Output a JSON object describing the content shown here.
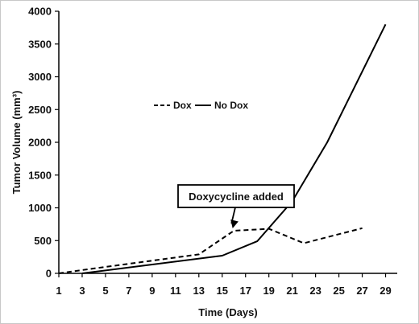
{
  "chart_data": {
    "type": "line",
    "xlabel": "Time (Days)",
    "ylabel": "Tumor Volume (mm³)",
    "xlim": [
      1,
      30
    ],
    "ylim": [
      0,
      4000
    ],
    "x_ticks": [
      1,
      3,
      5,
      7,
      9,
      11,
      13,
      15,
      17,
      19,
      21,
      23,
      25,
      27,
      29
    ],
    "y_ticks": [
      0,
      500,
      1000,
      1500,
      2000,
      2500,
      3000,
      3500,
      4000
    ],
    "grid": false,
    "legend_position": "middle-left",
    "series": [
      {
        "name": "Dox",
        "style": "dashed",
        "color": "#000000",
        "points": [
          [
            1,
            0
          ],
          [
            3,
            50
          ],
          [
            13,
            290
          ],
          [
            16,
            650
          ],
          [
            19,
            680
          ],
          [
            22,
            460
          ],
          [
            27,
            690
          ]
        ]
      },
      {
        "name": "No Dox",
        "style": "solid",
        "color": "#000000",
        "points": [
          [
            3,
            0
          ],
          [
            15,
            270
          ],
          [
            18,
            490
          ],
          [
            21,
            1100
          ],
          [
            24,
            2000
          ],
          [
            29,
            3800
          ]
        ]
      }
    ],
    "annotation": {
      "text": "Doxycycline added",
      "target": [
        16,
        650
      ]
    }
  }
}
